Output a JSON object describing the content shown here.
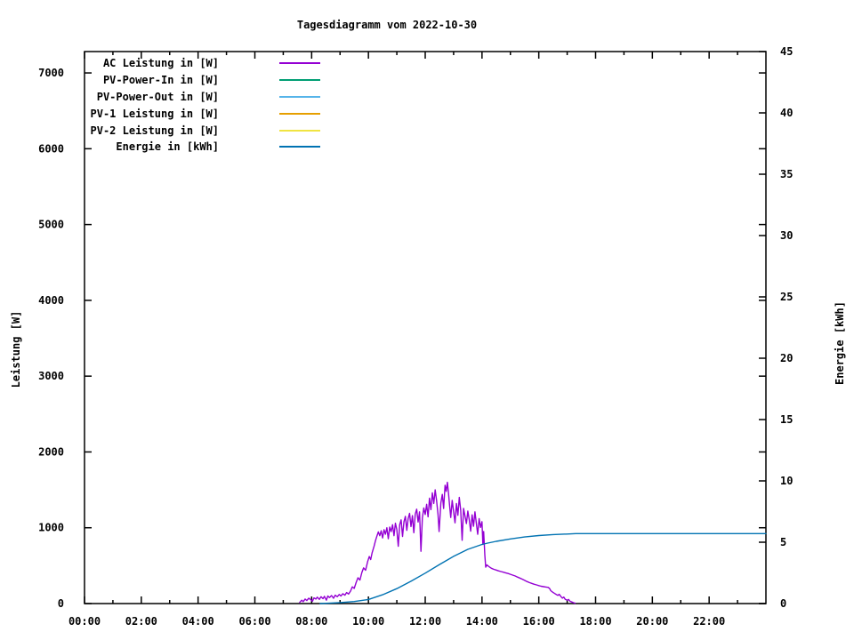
{
  "title": "Tagesdiagramm vom 2022-10-30",
  "colors": {
    "background": "#ffffff",
    "text": "#000000",
    "axis": "#000000",
    "ac_leistung": "#9400d3",
    "pv_power_in": "#009e73",
    "pv_power_out": "#56b4e9",
    "pv1_leistung": "#e69f00",
    "pv2_leistung": "#f0e442",
    "energie": "#0072b2"
  },
  "chart_data": {
    "type": "line",
    "title": "Tagesdiagramm vom 2022-10-30",
    "grid": false,
    "legend_position": "top-left",
    "x_axis": {
      "label": "",
      "range": [
        0,
        24
      ],
      "major_tick_hours": [
        0,
        2,
        4,
        6,
        8,
        10,
        12,
        14,
        16,
        18,
        20,
        22
      ],
      "major_tick_labels": [
        "00:00",
        "02:00",
        "04:00",
        "06:00",
        "08:00",
        "10:00",
        "12:00",
        "14:00",
        "16:00",
        "18:00",
        "20:00",
        "22:00"
      ],
      "minor_tick_hours": [
        1,
        3,
        5,
        7,
        9,
        11,
        13,
        15,
        17,
        19,
        21,
        23
      ]
    },
    "y_axis": {
      "label": "Leistung [W]",
      "range": [
        0,
        7282
      ],
      "ticks": [
        0,
        1000,
        2000,
        3000,
        4000,
        5000,
        6000,
        7000
      ]
    },
    "y2_axis": {
      "label": "Energie [kWh]",
      "range": [
        0,
        45
      ],
      "ticks": [
        0,
        5,
        10,
        15,
        20,
        25,
        30,
        35,
        40,
        45
      ]
    },
    "series": [
      {
        "name": "AC Leistung in [W]",
        "color": "#9400d3",
        "axis": "y1",
        "points": [
          [
            7.58,
            15
          ],
          [
            7.65,
            45
          ],
          [
            7.7,
            25
          ],
          [
            7.77,
            60
          ],
          [
            7.83,
            40
          ],
          [
            7.9,
            70
          ],
          [
            7.97,
            50
          ],
          [
            8.03,
            30
          ],
          [
            8.08,
            75
          ],
          [
            8.15,
            60
          ],
          [
            8.2,
            85
          ],
          [
            8.27,
            55
          ],
          [
            8.33,
            90
          ],
          [
            8.4,
            65
          ],
          [
            8.45,
            95
          ],
          [
            8.52,
            45
          ],
          [
            8.57,
            100
          ],
          [
            8.63,
            80
          ],
          [
            8.7,
            105
          ],
          [
            8.77,
            70
          ],
          [
            8.83,
            110
          ],
          [
            8.9,
            90
          ],
          [
            8.97,
            120
          ],
          [
            9.03,
            100
          ],
          [
            9.1,
            130
          ],
          [
            9.17,
            110
          ],
          [
            9.23,
            145
          ],
          [
            9.3,
            125
          ],
          [
            9.37,
            165
          ],
          [
            9.43,
            220
          ],
          [
            9.5,
            200
          ],
          [
            9.57,
            280
          ],
          [
            9.63,
            340
          ],
          [
            9.7,
            310
          ],
          [
            9.77,
            410
          ],
          [
            9.83,
            470
          ],
          [
            9.9,
            440
          ],
          [
            9.97,
            550
          ],
          [
            10.03,
            620
          ],
          [
            10.08,
            580
          ],
          [
            10.13,
            670
          ],
          [
            10.2,
            760
          ],
          [
            10.25,
            830
          ],
          [
            10.3,
            890
          ],
          [
            10.35,
            945
          ],
          [
            10.4,
            895
          ],
          [
            10.45,
            960
          ],
          [
            10.5,
            865
          ],
          [
            10.55,
            975
          ],
          [
            10.6,
            915
          ],
          [
            10.65,
            1000
          ],
          [
            10.7,
            855
          ],
          [
            10.75,
            1010
          ],
          [
            10.8,
            950
          ],
          [
            10.85,
            1040
          ],
          [
            10.9,
            895
          ],
          [
            10.95,
            1060
          ],
          [
            11.0,
            975
          ],
          [
            11.05,
            755
          ],
          [
            11.1,
            1040
          ],
          [
            11.15,
            1105
          ],
          [
            11.2,
            885
          ],
          [
            11.25,
            1080
          ],
          [
            11.3,
            1150
          ],
          [
            11.35,
            965
          ],
          [
            11.4,
            1120
          ],
          [
            11.45,
            1190
          ],
          [
            11.5,
            1015
          ],
          [
            11.55,
            1160
          ],
          [
            11.6,
            935
          ],
          [
            11.65,
            1180
          ],
          [
            11.7,
            1245
          ],
          [
            11.75,
            1075
          ],
          [
            11.8,
            1210
          ],
          [
            11.85,
            690
          ],
          [
            11.9,
            1130
          ],
          [
            11.95,
            1260
          ],
          [
            12.0,
            1175
          ],
          [
            12.05,
            1310
          ],
          [
            12.1,
            1145
          ],
          [
            12.15,
            1390
          ],
          [
            12.2,
            1240
          ],
          [
            12.25,
            1460
          ],
          [
            12.3,
            1320
          ],
          [
            12.35,
            1500
          ],
          [
            12.4,
            1355
          ],
          [
            12.45,
            1175
          ],
          [
            12.49,
            950
          ],
          [
            12.55,
            1330
          ],
          [
            12.6,
            1440
          ],
          [
            12.65,
            1255
          ],
          [
            12.7,
            1560
          ],
          [
            12.74,
            1480
          ],
          [
            12.78,
            1600
          ],
          [
            12.82,
            1450
          ],
          [
            12.86,
            1295
          ],
          [
            12.9,
            1135
          ],
          [
            12.95,
            1360
          ],
          [
            13.0,
            1215
          ],
          [
            13.05,
            1065
          ],
          [
            13.1,
            1320
          ],
          [
            13.15,
            1165
          ],
          [
            13.2,
            1400
          ],
          [
            13.25,
            1230
          ],
          [
            13.3,
            835
          ],
          [
            13.35,
            1255
          ],
          [
            13.4,
            1155
          ],
          [
            13.45,
            1055
          ],
          [
            13.5,
            1220
          ],
          [
            13.55,
            1105
          ],
          [
            13.6,
            955
          ],
          [
            13.65,
            1170
          ],
          [
            13.7,
            1020
          ],
          [
            13.75,
            1210
          ],
          [
            13.8,
            1055
          ],
          [
            13.85,
            915
          ],
          [
            13.9,
            1120
          ],
          [
            13.95,
            1005
          ],
          [
            14.0,
            1080
          ],
          [
            14.03,
            780
          ],
          [
            14.06,
            950
          ],
          [
            14.1,
            640
          ],
          [
            14.13,
            480
          ],
          [
            14.17,
            510
          ],
          [
            14.25,
            485
          ],
          [
            14.33,
            465
          ],
          [
            14.42,
            452
          ],
          [
            14.5,
            442
          ],
          [
            14.58,
            432
          ],
          [
            14.67,
            422
          ],
          [
            14.75,
            414
          ],
          [
            14.83,
            406
          ],
          [
            14.92,
            396
          ],
          [
            15.0,
            386
          ],
          [
            15.08,
            375
          ],
          [
            15.17,
            364
          ],
          [
            15.25,
            350
          ],
          [
            15.33,
            336
          ],
          [
            15.42,
            321
          ],
          [
            15.5,
            306
          ],
          [
            15.58,
            291
          ],
          [
            15.67,
            277
          ],
          [
            15.75,
            266
          ],
          [
            15.83,
            256
          ],
          [
            15.92,
            246
          ],
          [
            16.0,
            237
          ],
          [
            16.08,
            229
          ],
          [
            16.17,
            223
          ],
          [
            16.25,
            218
          ],
          [
            16.33,
            213
          ],
          [
            16.38,
            198
          ],
          [
            16.42,
            170
          ],
          [
            16.5,
            148
          ],
          [
            16.58,
            128
          ],
          [
            16.67,
            108
          ],
          [
            16.72,
            122
          ],
          [
            16.78,
            92
          ],
          [
            16.83,
            72
          ],
          [
            16.88,
            86
          ],
          [
            16.93,
            58
          ],
          [
            17.0,
            44
          ],
          [
            17.05,
            54
          ],
          [
            17.1,
            30
          ],
          [
            17.17,
            20
          ],
          [
            17.22,
            12
          ],
          [
            17.28,
            5
          ]
        ]
      },
      {
        "name": "PV-Power-In in [W]",
        "color": "#009e73",
        "axis": "y1",
        "points": []
      },
      {
        "name": "PV-Power-Out in [W]",
        "color": "#56b4e9",
        "axis": "y1",
        "points": []
      },
      {
        "name": "PV-1 Leistung in [W]",
        "color": "#e69f00",
        "axis": "y1",
        "points": []
      },
      {
        "name": "PV-2 Leistung in [W]",
        "color": "#f0e442",
        "axis": "y1",
        "points": []
      },
      {
        "name": "Energie in [kWh]",
        "color": "#0072b2",
        "axis": "y2",
        "points": [
          [
            8.3,
            0
          ],
          [
            8.6,
            0.03
          ],
          [
            9.0,
            0.08
          ],
          [
            9.5,
            0.17
          ],
          [
            10.0,
            0.33
          ],
          [
            10.5,
            0.72
          ],
          [
            11.0,
            1.22
          ],
          [
            11.5,
            1.82
          ],
          [
            12.0,
            2.48
          ],
          [
            12.5,
            3.18
          ],
          [
            13.0,
            3.85
          ],
          [
            13.5,
            4.42
          ],
          [
            14.0,
            4.82
          ],
          [
            14.2,
            4.93
          ],
          [
            14.5,
            5.07
          ],
          [
            15.0,
            5.27
          ],
          [
            15.5,
            5.43
          ],
          [
            16.0,
            5.54
          ],
          [
            16.5,
            5.62
          ],
          [
            17.0,
            5.67
          ],
          [
            17.3,
            5.7
          ],
          [
            18.0,
            5.7
          ],
          [
            20.0,
            5.7
          ],
          [
            24.0,
            5.7
          ]
        ]
      }
    ]
  }
}
